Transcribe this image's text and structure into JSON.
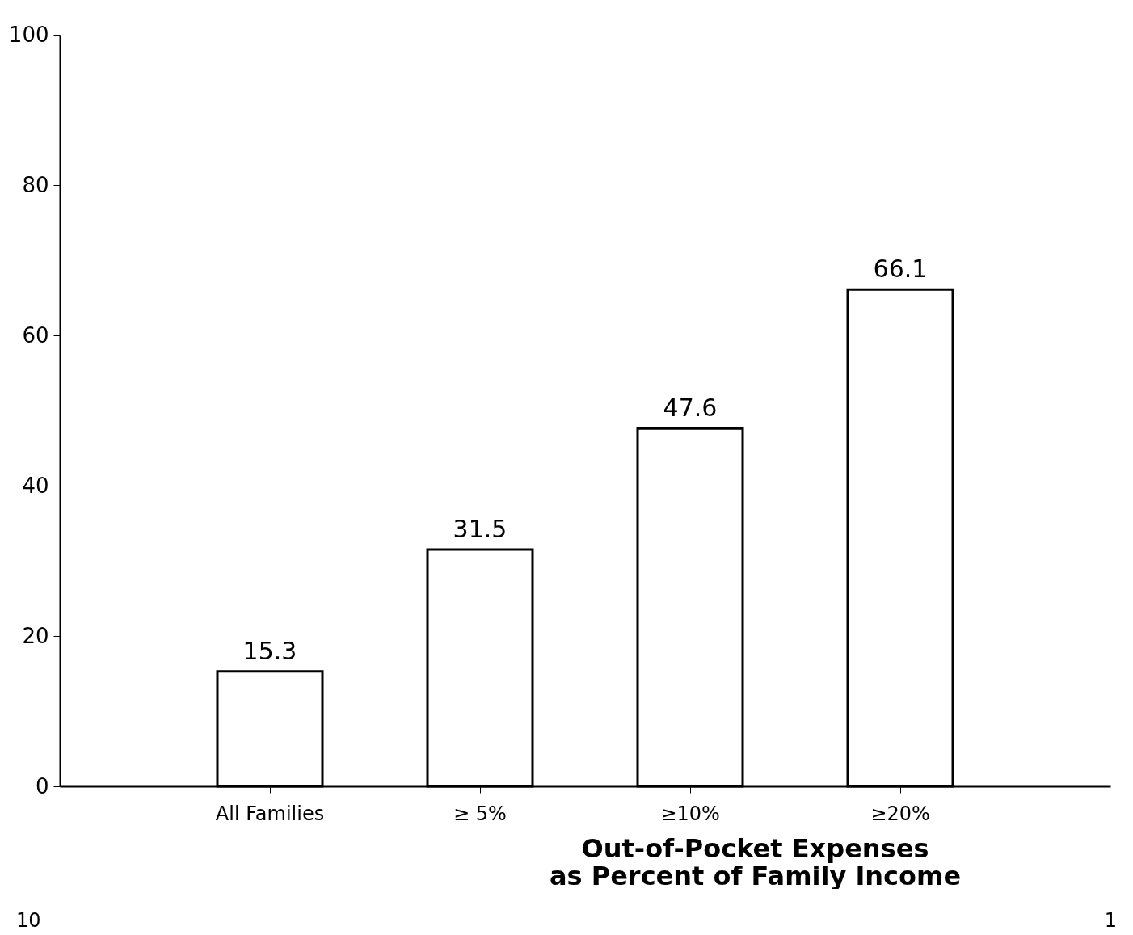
{
  "chart_data": {
    "type": "bar",
    "categories": [
      "All Families",
      "≥ 5%",
      "≥10%",
      "≥20%"
    ],
    "values": [
      15.3,
      31.5,
      47.6,
      66.1
    ],
    "color": "#ffffff",
    "xlabel": "Out-of-Pocket Expenses\nas Percent of Family Income",
    "ylim": [
      0,
      100
    ],
    "yticks": [
      0,
      20,
      40,
      60,
      80,
      100
    ],
    "data_labels": true,
    "grid": false,
    "annotations": [
      "10",
      "1"
    ]
  }
}
